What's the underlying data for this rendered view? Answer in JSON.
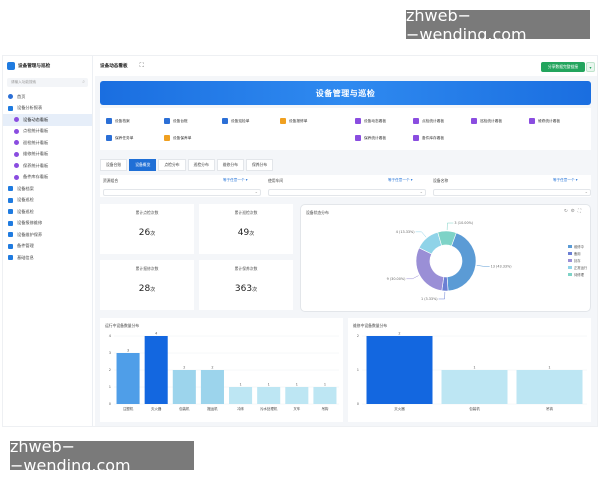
{
  "watermark": {
    "text": "zhweb−−wending.com"
  },
  "sidebar": {
    "title": "设备管理与巡检",
    "search_placeholder": "请输入功能搜索",
    "items": [
      {
        "label": "首页",
        "icon": "home-icon",
        "level": 0
      },
      {
        "label": "设备分析报表",
        "icon": "folder-icon",
        "level": 0
      },
      {
        "label": "设备动态看板",
        "icon": "dashboard-icon",
        "level": 1,
        "active": true
      },
      {
        "label": "点检统计看板",
        "icon": "chart-icon",
        "level": 1
      },
      {
        "label": "巡检统计看板",
        "icon": "chart-icon",
        "level": 1
      },
      {
        "label": "维修统计看板",
        "icon": "chart-icon",
        "level": 1
      },
      {
        "label": "保养统计看板",
        "icon": "chart-icon",
        "level": 1
      },
      {
        "label": "备件库存看板",
        "icon": "chart-icon",
        "level": 1
      },
      {
        "label": "设备档案",
        "icon": "folder-icon",
        "level": 0
      },
      {
        "label": "设备巡检",
        "icon": "folder-icon",
        "level": 0
      },
      {
        "label": "设备巡检",
        "icon": "folder-icon",
        "level": 0
      },
      {
        "label": "设备报修维修",
        "icon": "folder-icon",
        "level": 0
      },
      {
        "label": "设备维护保养",
        "icon": "folder-icon",
        "level": 0
      },
      {
        "label": "备件管理",
        "icon": "folder-icon",
        "level": 0
      },
      {
        "label": "基础信息",
        "icon": "folder-icon",
        "level": 0
      }
    ]
  },
  "topbar": {
    "title": "设备动态看板",
    "expand_icon": "expand-icon",
    "action_button": "分享数据完整链接",
    "dropdown_icon": "chevron-down-icon"
  },
  "banner": {
    "title": "设备管理与巡检"
  },
  "quick_links": [
    {
      "label": "设备档案",
      "color": "#2b6fd6"
    },
    {
      "label": "设备台账",
      "color": "#2b6fd6"
    },
    {
      "label": "设备巡检单",
      "color": "#2b6fd6"
    },
    {
      "label": "设备报修单",
      "color": "#f0a020"
    },
    {
      "label": "设备动态看板",
      "color": "#8a4de0"
    },
    {
      "label": "点检统计看板",
      "color": "#8a4de0"
    },
    {
      "label": "巡检统计看板",
      "color": "#8a4de0"
    },
    {
      "label": "维修统计看板",
      "color": "#8a4de0"
    },
    {
      "label": "保养任务单",
      "color": "#2b6fd6"
    },
    {
      "label": "设备保养单",
      "color": "#f0a020"
    },
    {
      "label": "保养统计看板",
      "color": "#8a4de0"
    },
    {
      "label": "备件库存看板",
      "color": "#8a4de0"
    }
  ],
  "tabs": [
    {
      "label": "设备台账",
      "active": false
    },
    {
      "label": "设备概览",
      "active": true
    },
    {
      "label": "点检分布",
      "active": false
    },
    {
      "label": "巡检分布",
      "active": false
    },
    {
      "label": "维修分布",
      "active": false
    },
    {
      "label": "保养分布",
      "active": false
    }
  ],
  "filters": [
    {
      "label": "资源组合",
      "select": "等于任意一个"
    },
    {
      "label": "使用车间",
      "select": "等于任意一个"
    },
    {
      "label": "设备名称",
      "select": "等于任意一个"
    }
  ],
  "stats": [
    {
      "label": "累计点检次数",
      "value": "26",
      "unit": "次"
    },
    {
      "label": "累计巡检次数",
      "value": "49",
      "unit": "次"
    },
    {
      "label": "累计报修次数",
      "value": "28",
      "unit": "次"
    },
    {
      "label": "累计保养次数",
      "value": "363",
      "unit": "次"
    }
  ],
  "chart_data": [
    {
      "type": "pie",
      "title": "设备状态分布",
      "slices": [
        {
          "name": "维修中",
          "value": 13,
          "label": "13 (43.33%)",
          "color": "#5b9bd5"
        },
        {
          "name": "备用",
          "value": 1,
          "label": "1 (3.33%)",
          "color": "#6b7fd4"
        },
        {
          "name": "封存",
          "value": 9,
          "label": "9 (30.00%)",
          "color": "#9a8fd6"
        },
        {
          "name": "正常运行",
          "value": 4,
          "label": "4 (13.33%)",
          "color": "#8fd3e8"
        },
        {
          "name": "待修理",
          "value": 3,
          "label": "3 (10.00%)",
          "color": "#7ed3c7"
        }
      ],
      "legend_placement": "right"
    },
    {
      "type": "bar",
      "title": "运行中设备数量分布",
      "categories": [
        "注塑机",
        "灭火器",
        "包装机",
        "搬运机",
        "冲床",
        "污水处理机",
        "叉车",
        "吊钩"
      ],
      "values": [
        3,
        4,
        2,
        2,
        1,
        1,
        1,
        1
      ],
      "ylim": [
        0,
        4
      ],
      "yticks": [
        0,
        1,
        2,
        3,
        4
      ],
      "grid": true
    },
    {
      "type": "bar",
      "title": "维修中设备数量分布",
      "categories": [
        "灭火器",
        "包装机",
        "吊钩"
      ],
      "values": [
        2,
        1,
        1
      ],
      "ylim": [
        0,
        2
      ],
      "yticks": [
        0,
        1,
        2
      ],
      "grid": true
    }
  ]
}
